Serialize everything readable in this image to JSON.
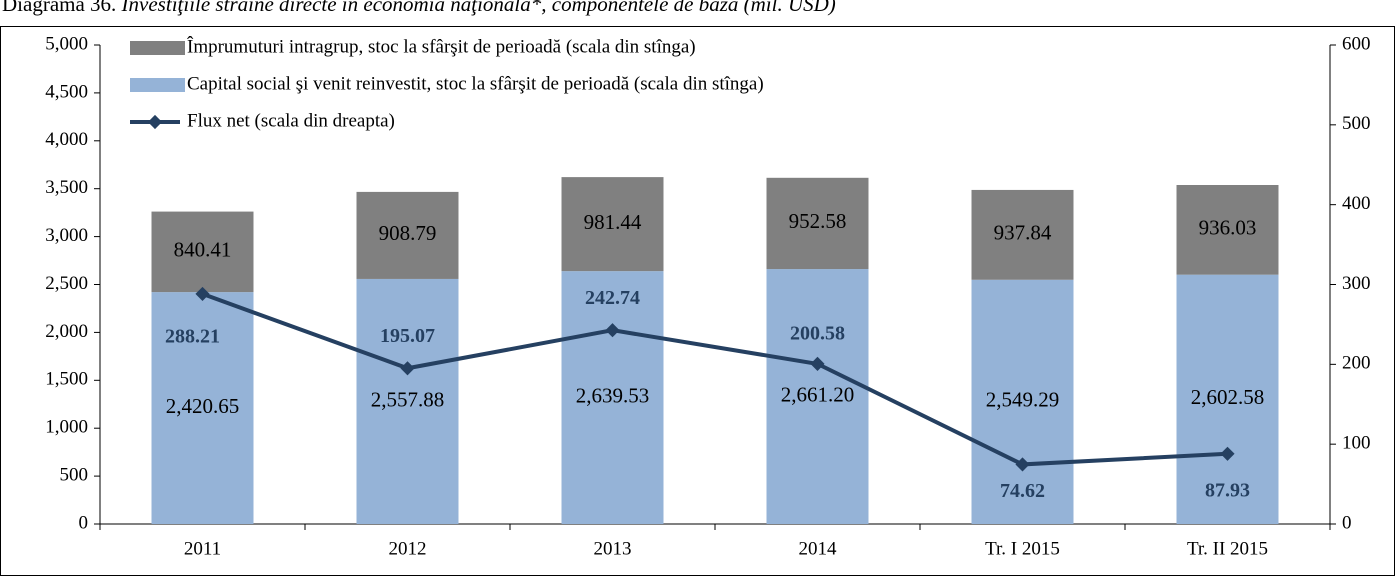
{
  "chart_data": {
    "type": "bar",
    "title": "Diagrama 36.",
    "subtitle": "Investiţiile străine directe în economia naţională*, componentele de bază (mil. USD)",
    "categories": [
      "2011",
      "2012",
      "2013",
      "2014",
      "Tr. I 2015",
      "Tr. II 2015"
    ],
    "series": [
      {
        "name": "Capital social şi venit reinvestit, stoc la sfârşit de perioadă (scala din stînga)",
        "color": "#95b3d7",
        "values": [
          2420.65,
          2557.88,
          2639.53,
          2661.2,
          2549.29,
          2602.58
        ],
        "value_labels": [
          "2,420.65",
          "2,557.88",
          "2,639.53",
          "2,661.20",
          "2,549.29",
          "2,602.58"
        ]
      },
      {
        "name": "Împrumuturi intragrup, stoc la sfârşit de perioadă (scala din stînga)",
        "color": "#808080",
        "values": [
          840.41,
          908.79,
          981.44,
          952.58,
          937.84,
          936.03
        ]
      },
      {
        "name": "Flux net (scala din dreapta)",
        "color": "#254061",
        "axis": "y2",
        "values": [
          288.21,
          195.07,
          242.74,
          200.58,
          74.62,
          87.93
        ]
      }
    ],
    "ylim": [
      0,
      5000
    ],
    "yticks": [
      0,
      500,
      {
        "value": 1000,
        "label": "1,000"
      },
      {
        "value": 1500,
        "label": "1,500"
      },
      {
        "value": 2000,
        "label": "2,000"
      },
      {
        "value": 2500,
        "label": "2,500"
      },
      {
        "value": 3000,
        "label": "3,000"
      },
      {
        "value": 3500,
        "label": "3,500"
      },
      {
        "value": 4000,
        "label": "4,000"
      },
      {
        "value": 4500,
        "label": "4,500"
      },
      {
        "value": 5000,
        "label": "5,000"
      }
    ],
    "y2lim": [
      0,
      600
    ],
    "y2ticks": [
      0,
      100,
      200,
      300,
      400,
      500,
      600
    ],
    "legend": "top-left"
  }
}
